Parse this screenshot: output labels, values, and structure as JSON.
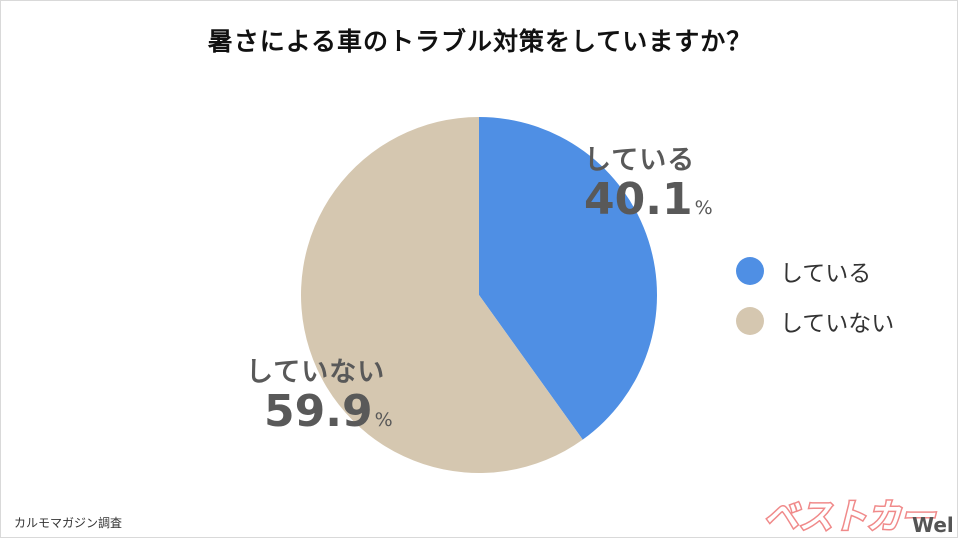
{
  "title": "暑さによる車のトラブル対策をしていますか？",
  "chart_data": {
    "type": "pie",
    "title": "暑さによる車のトラブル対策をしていますか？",
    "slices": [
      {
        "label": "している",
        "value": 40.1,
        "color": "#4f8fe4"
      },
      {
        "label": "していない",
        "value": 59.9,
        "color": "#d5c7b0"
      }
    ],
    "unit": "%",
    "legend_position": "right"
  },
  "labels": {
    "yes_name": "している",
    "yes_pct": "40.1",
    "no_name": "していない",
    "no_pct": "59.9",
    "unit": "%"
  },
  "legend": [
    {
      "label": "している",
      "color": "#4f8fe4"
    },
    {
      "label": "していない",
      "color": "#d5c7b0"
    }
  ],
  "source": "カルモマガジン調査",
  "logo": {
    "text": "ベストカー",
    "sub": "Web"
  }
}
